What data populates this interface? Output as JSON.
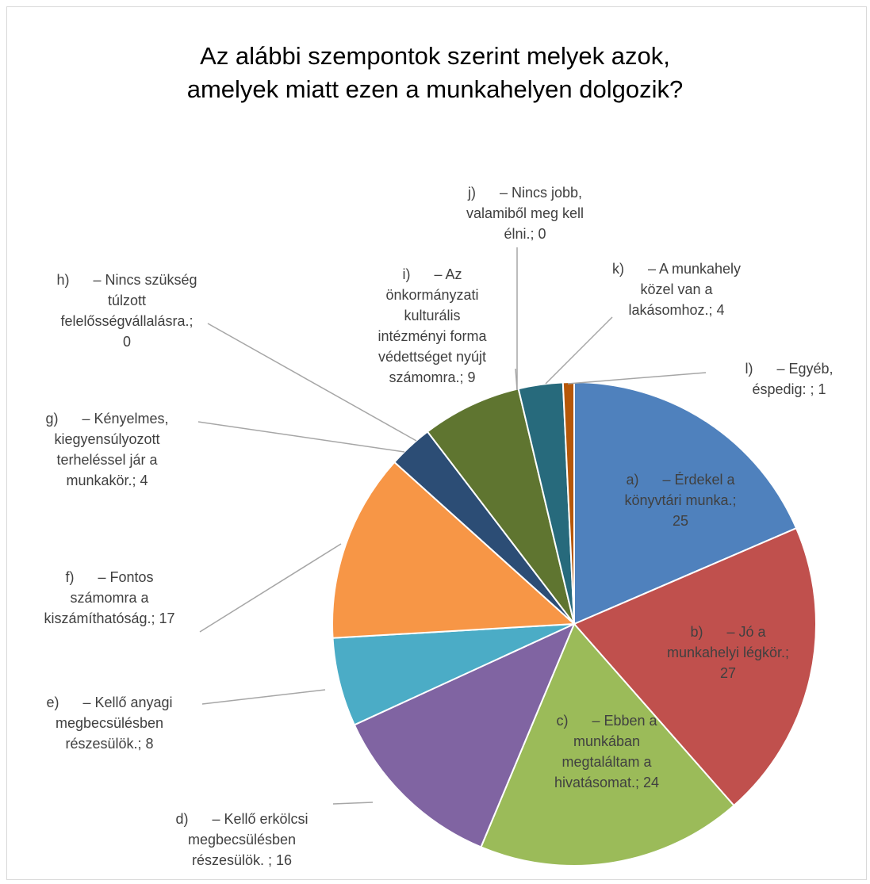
{
  "chart_data": {
    "type": "pie",
    "title": "Az alábbi szempontok szerint melyek azok,\namelyek miatt ezen a munkahelyen dolgozik?",
    "slices": [
      {
        "label": "a)      – Érdekel a\nkönyvtári munka.;\n25",
        "value": 25,
        "color": "#4f81bd"
      },
      {
        "label": "b)      – Jó a\nmunkahelyi légkör.;\n27",
        "value": 27,
        "color": "#c0504d"
      },
      {
        "label": "c)      – Ebben a\nmunkában\nmegtaláltam a\nhivatásomat.; 24",
        "value": 24,
        "color": "#9bbb59"
      },
      {
        "label": "d)      – Kellő erkölcsi\nmegbecsülésben\nrészesülök. ; 16",
        "value": 16,
        "color": "#8064a2"
      },
      {
        "label": "e)      – Kellő anyagi\nmegbecsülésben\nrészesülök.; 8",
        "value": 8,
        "color": "#4bacc6"
      },
      {
        "label": "f)      – Fontos\nszámomra a\nkiszámíthatóság.; 17",
        "value": 17,
        "color": "#f79646"
      },
      {
        "label": "g)      – Kényelmes,\nkiegyensúlyozott\nterheléssel jár a\nmunkakör.; 4",
        "value": 4,
        "color": "#2c4d75"
      },
      {
        "label": "h)      – Nincs szükség\ntúlzott\nfelelősségvállalásra.;\n0",
        "value": 0,
        "color": "#772c2a"
      },
      {
        "label": "i)      – Az\nönkormányzati\nkulturális\nintézményi forma\nvédettséget nyújt\nszámomra.; 9",
        "value": 9,
        "color": "#5f7530"
      },
      {
        "label": "j)      – Nincs jobb,\nvalamiből meg kell\nélni.; 0",
        "value": 0,
        "color": "#4d3b62"
      },
      {
        "label": "k)      – A munkahely\nközel van a\nlakásomhoz.; 4",
        "value": 4,
        "color": "#276a7c"
      },
      {
        "label": "l)      – Egyéb,\néspedig: ; 1",
        "value": 1,
        "color": "#b65708"
      }
    ]
  }
}
